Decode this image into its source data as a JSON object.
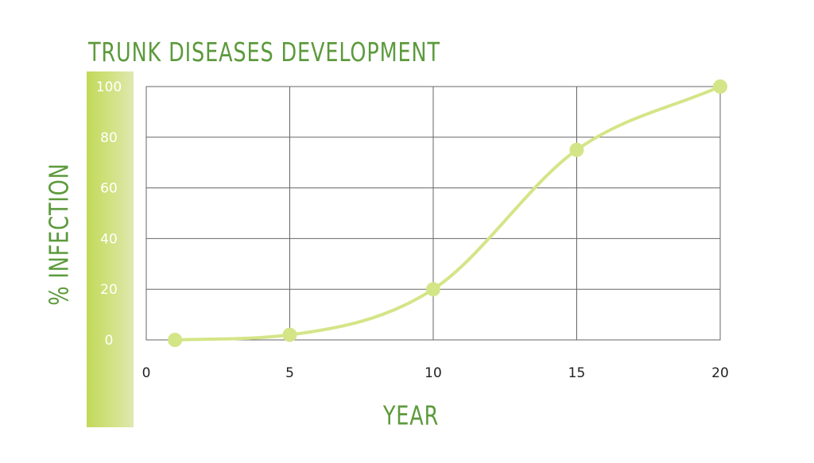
{
  "chart_data": {
    "type": "line",
    "title": "TRUNK DISEASES DEVELOPMENT",
    "xlabel": "YEAR",
    "ylabel": "% INFECTION",
    "x_ticks": [
      0,
      5,
      10,
      15,
      20
    ],
    "y_ticks": [
      0,
      20,
      40,
      60,
      80,
      100
    ],
    "xlim": [
      0,
      20
    ],
    "ylim": [
      0,
      100
    ],
    "grid": true,
    "legend": "none",
    "series": [
      {
        "x": [
          1,
          5,
          10,
          15,
          20
        ],
        "values": [
          0,
          2,
          20,
          75,
          100
        ],
        "color": "#d4e587"
      }
    ],
    "colors": {
      "text_accent": "#5c9a3c",
      "axis_band": "#c9dc6e",
      "line": "#d4e587",
      "grid": "#666666"
    }
  }
}
